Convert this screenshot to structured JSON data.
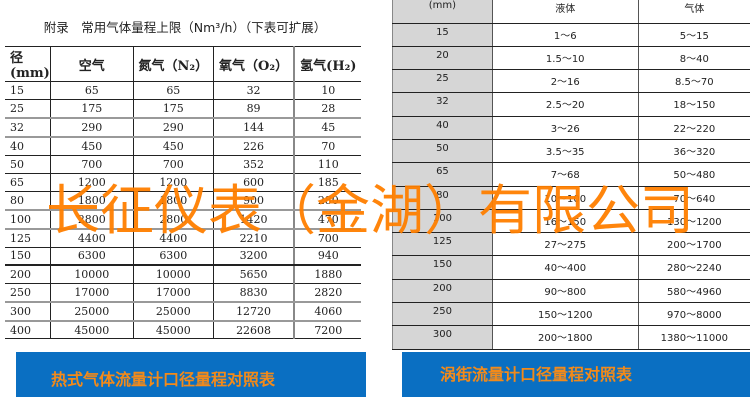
{
  "left_table": {
    "title": "附录　常用气体量程上限（Nm³/h）（下表可扩展）",
    "headers": [
      "径(mm)",
      "空气",
      "氮气（N₂）",
      "氧气（O₂）",
      "氢气(H₂)"
    ],
    "rows": [
      [
        "15",
        "65",
        "65",
        "32",
        "10"
      ],
      [
        "25",
        "175",
        "175",
        "89",
        "28"
      ],
      [
        "32",
        "290",
        "290",
        "144",
        "45"
      ],
      [
        "40",
        "450",
        "450",
        "226",
        "70"
      ],
      [
        "50",
        "700",
        "700",
        "352",
        "110"
      ],
      [
        "65",
        "1200",
        "1200",
        "600",
        "185"
      ],
      [
        "80",
        "1800",
        "1800",
        "900",
        "280"
      ],
      [
        "100",
        "2800",
        "2800",
        "1420",
        "470"
      ],
      [
        "125",
        "4400",
        "4400",
        "2210",
        "700"
      ],
      [
        "150",
        "6300",
        "6300",
        "3200",
        "940"
      ],
      [
        "200",
        "10000",
        "10000",
        "5650",
        "1880"
      ],
      [
        "250",
        "17000",
        "17000",
        "8830",
        "2820"
      ],
      [
        "300",
        "25000",
        "25000",
        "12720",
        "4060"
      ],
      [
        "400",
        "45000",
        "45000",
        "22608",
        "7200"
      ]
    ]
  },
  "right_table": {
    "headers": [
      "(mm)",
      "液体",
      "气体"
    ],
    "rows": [
      [
        "15",
        "1～6",
        "5～15"
      ],
      [
        "20",
        "1.5～10",
        "8～40"
      ],
      [
        "25",
        "2～16",
        "8.5～70"
      ],
      [
        "32",
        "2.5～20",
        "18～150"
      ],
      [
        "40",
        "3～26",
        "22～220"
      ],
      [
        "50",
        "3.5～35",
        "36～320"
      ],
      [
        "65",
        "7～68",
        "50～480"
      ],
      [
        "80",
        "10～100",
        "70～640"
      ],
      [
        "100",
        "16～150",
        "130～1200"
      ],
      [
        "125",
        "27～275",
        "200～1700"
      ],
      [
        "150",
        "40～400",
        "280～2240"
      ],
      [
        "200",
        "90～800",
        "580～4960"
      ],
      [
        "250",
        "150～1200",
        "970～8000"
      ],
      [
        "300",
        "200～1800",
        "1380～11000"
      ]
    ]
  },
  "banners": {
    "left": "热式气体流量计口径量程对照表",
    "right": "涡街流量计口径量程对照表"
  },
  "watermark": "长征仪表（金湖）有限公司",
  "colors": {
    "banner_bg": "#0a6fc2",
    "banner_text": "#f28a1a",
    "watermark": "#ff7f00"
  }
}
